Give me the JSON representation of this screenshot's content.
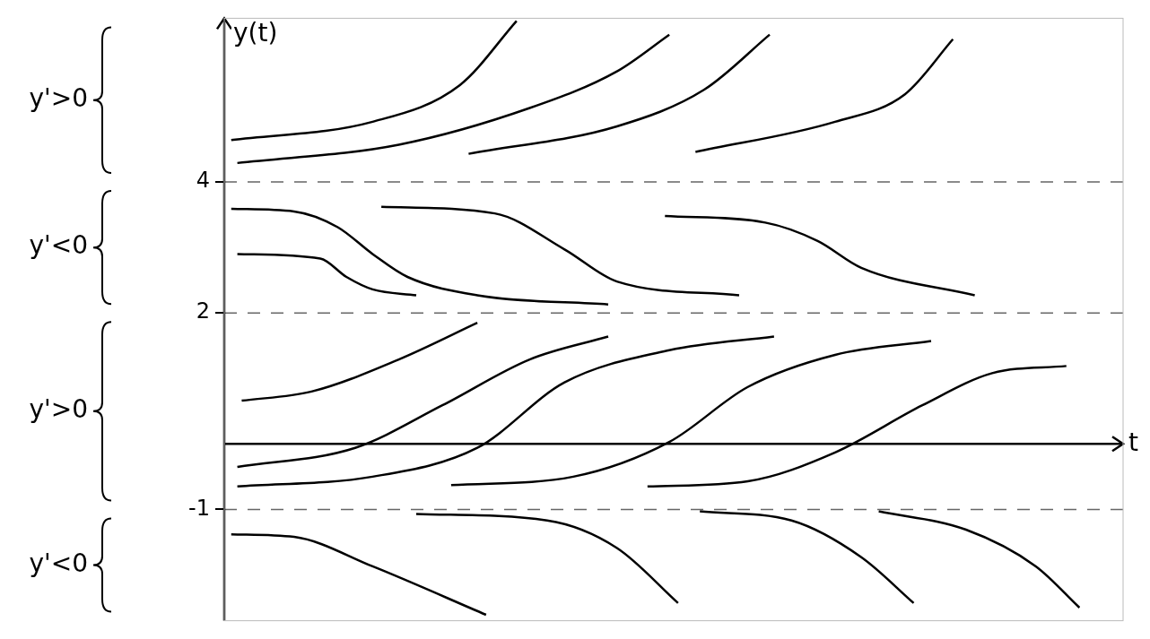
{
  "chart_data": {
    "type": "line",
    "x_label": "t",
    "y_label": "y(t)",
    "xlim": [
      0,
      10.3
    ],
    "ylim": [
      -2.7,
      6.5
    ],
    "yticks": [
      -1,
      2,
      4
    ],
    "tick_labels": "y",
    "grid": false,
    "legend": false,
    "color": "#000000",
    "origin": [
      0,
      0
    ],
    "equilibria": [
      4,
      2,
      -1
    ],
    "annotations": [
      {
        "text": "y'>0",
        "y_range": [
          4,
          6.5
        ]
      },
      {
        "text": "y'<0",
        "y_range": [
          2,
          4
        ]
      },
      {
        "text": "y'>0",
        "y_range": [
          -1,
          2
        ]
      },
      {
        "text": "y'<0",
        "y_range": [
          -2.7,
          -1
        ]
      }
    ],
    "series": [
      {
        "x": [
          0.08,
          1.7,
          2.7,
          3.35
        ],
        "values": [
          4.64,
          4.92,
          5.48,
          6.46
        ]
      },
      {
        "x": [
          0.15,
          2.0,
          3.5,
          4.5,
          5.1
        ],
        "values": [
          4.29,
          4.57,
          5.13,
          5.69,
          6.25
        ]
      },
      {
        "x": [
          2.8,
          4.5,
          5.5,
          6.25
        ],
        "values": [
          4.43,
          4.85,
          5.41,
          6.25
        ]
      },
      {
        "x": [
          5.4,
          7.0,
          7.8,
          8.35
        ],
        "values": [
          4.46,
          4.92,
          5.34,
          6.18
        ]
      },
      {
        "x": [
          0.08,
          0.8,
          1.3,
          1.7,
          2.1,
          2.9,
          4.4
        ],
        "values": [
          3.59,
          3.55,
          3.31,
          2.9,
          2.55,
          2.27,
          2.13
        ]
      },
      {
        "x": [
          0.15,
          1.1,
          1.4,
          1.7,
          2.2
        ],
        "values": [
          2.9,
          2.83,
          2.55,
          2.36,
          2.27
        ]
      },
      {
        "x": [
          1.8,
          3.1,
          3.9,
          4.5,
          5.9
        ],
        "values": [
          3.62,
          3.52,
          2.97,
          2.48,
          2.27
        ]
      },
      {
        "x": [
          5.05,
          6.2,
          6.8,
          7.3,
          8.6
        ],
        "values": [
          3.48,
          3.38,
          3.1,
          2.69,
          2.27
        ]
      },
      {
        "x": [
          0.2,
          1.0,
          2.0,
          2.9
        ],
        "values": [
          0.66,
          0.8,
          1.29,
          1.85
        ]
      },
      {
        "x": [
          0.15,
          1.5,
          2.5,
          3.5,
          4.4
        ],
        "values": [
          -0.35,
          -0.06,
          0.59,
          1.29,
          1.64
        ]
      },
      {
        "x": [
          0.15,
          1.7,
          2.9,
          3.9,
          5.1,
          6.3
        ],
        "values": [
          -0.65,
          -0.5,
          -0.06,
          0.94,
          1.43,
          1.64
        ]
      },
      {
        "x": [
          2.6,
          4.0,
          5.1,
          6.0,
          7.0,
          8.1
        ],
        "values": [
          -0.63,
          -0.5,
          0.03,
          0.87,
          1.36,
          1.57
        ]
      },
      {
        "x": [
          4.85,
          6.0,
          7.0,
          8.0,
          8.8,
          9.65
        ],
        "values": [
          -0.65,
          -0.57,
          -0.13,
          0.59,
          1.08,
          1.19
        ]
      },
      {
        "x": [
          0.08,
          0.8,
          1.7,
          3.0
        ],
        "values": [
          -1.38,
          -1.42,
          -1.87,
          -2.61
        ]
      },
      {
        "x": [
          2.2,
          3.7,
          4.5,
          5.2
        ],
        "values": [
          -1.07,
          -1.17,
          -1.59,
          -2.43
        ]
      },
      {
        "x": [
          5.45,
          6.5,
          7.3,
          7.9
        ],
        "values": [
          -1.03,
          -1.17,
          -1.73,
          -2.43
        ]
      },
      {
        "x": [
          7.5,
          8.5,
          9.3,
          9.8
        ],
        "values": [
          -1.03,
          -1.31,
          -1.87,
          -2.5
        ]
      }
    ]
  }
}
